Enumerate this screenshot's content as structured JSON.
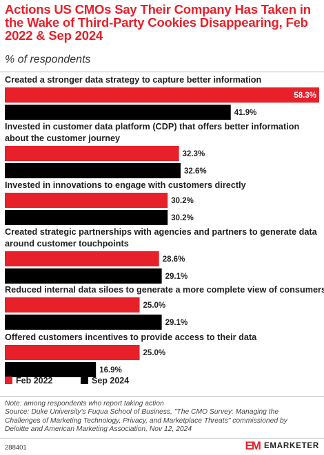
{
  "header": {
    "title": "Actions US CMOs Say Their Company Has Taken in the Wake of Third-Party Cookies Disappearing, Feb 2022 & Sep 2024",
    "subtitle": "% of respondents"
  },
  "chart_data": {
    "type": "bar",
    "orientation": "horizontal",
    "categories": [
      "Created a stronger data strategy to capture better information",
      "Invested in customer data platform (CDP) that offers better information about the customer journey",
      "Invested in innovations to engage with customers directly",
      "Created strategic partnerships with agencies and partners to generate data around customer touchpoints",
      "Reduced internal data siloes to generate a more complete view of consumers",
      "Offered customers incentives to provide access to their data"
    ],
    "series": [
      {
        "name": "Feb 2022",
        "color": "#e8202a",
        "values": [
          58.3,
          32.3,
          30.2,
          28.6,
          25.0,
          25.0
        ],
        "labels": [
          "58.3%",
          "32.3%",
          "30.2%",
          "28.6%",
          "25.0%",
          "25.0%"
        ]
      },
      {
        "name": "Sep 2024",
        "color": "#000000",
        "values": [
          41.9,
          32.6,
          30.2,
          29.1,
          29.1,
          16.9
        ],
        "labels": [
          "41.9%",
          "32.6%",
          "30.2%",
          "29.1%",
          "29.1%",
          "16.9%"
        ]
      }
    ],
    "xlim": [
      0,
      58.3
    ],
    "grid": false,
    "legend_position": "bottom-left"
  },
  "footer": {
    "note_lines": [
      "Note: among respondents who report taking action",
      "Source: Duke University's Fuqua School of Business, \"The CMO Survey: Managing the",
      "Challenges of Marketing Technology, Privacy, and Marketplace Threats\" commissioned by",
      "Deloitte and American Marketing Association, Nov 12, 2024"
    ],
    "chart_id": "288401",
    "brand_mark": "EM",
    "brand_name": "EMARKETER"
  }
}
